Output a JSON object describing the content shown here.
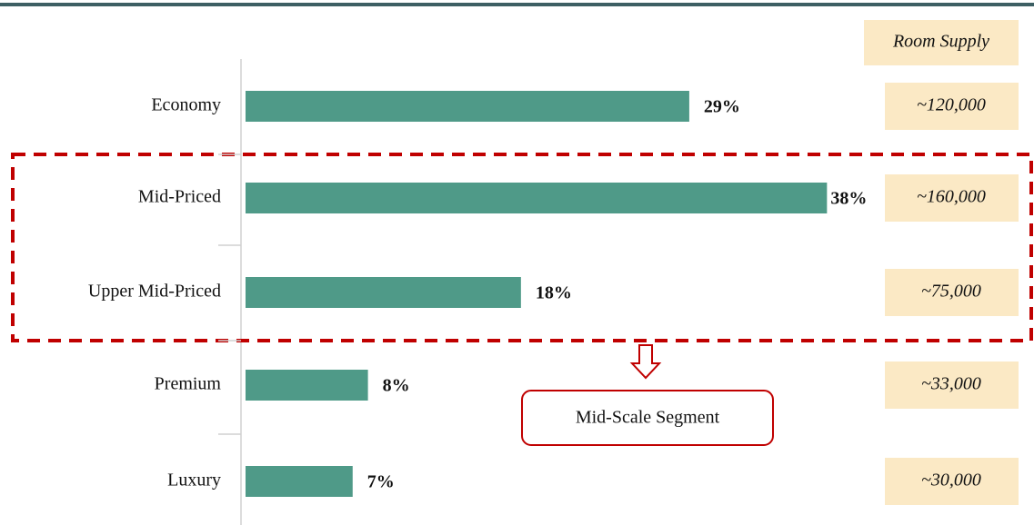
{
  "chart_data": {
    "type": "bar",
    "orientation": "horizontal",
    "categories": [
      "Economy",
      "Mid-Priced",
      "Upper Mid-Priced",
      "Premium",
      "Luxury"
    ],
    "values": [
      29,
      38,
      18,
      8,
      7
    ],
    "value_labels": [
      "29%",
      "38%",
      "18%",
      "8%",
      "7%"
    ],
    "color": "#4f9a88",
    "xlim": [
      0,
      40
    ],
    "side_column": {
      "title": "Room Supply",
      "labels": [
        "~120,000",
        "~160,000",
        "~75,000",
        "~33,000",
        "~30,000"
      ]
    },
    "annotation": "Mid-Scale Segment"
  }
}
